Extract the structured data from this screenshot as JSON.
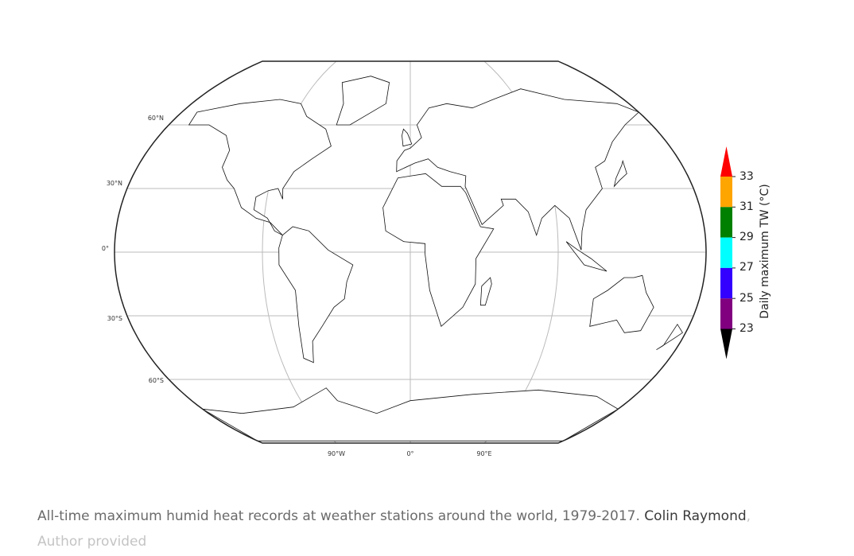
{
  "map": {
    "projection": "Kavrayskiy VII",
    "lat_labels": [
      "60°N",
      "30°N",
      "0°",
      "30°S",
      "60°S"
    ],
    "lon_labels": [
      "90°W",
      "0°",
      "90°E"
    ],
    "colorbar": {
      "title": "Daily maximum TW (°C)",
      "ticks": [
        "33",
        "31",
        "29",
        "27",
        "25",
        "23"
      ],
      "bins": [
        {
          "range": ">33",
          "color": "#ff0000"
        },
        {
          "range": "31-33",
          "color": "#ffa500"
        },
        {
          "range": "29-31",
          "color": "#008000"
        },
        {
          "range": "27-29",
          "color": "#00ffff"
        },
        {
          "range": "25-27",
          "color": "#3300ff"
        },
        {
          "range": "23-25",
          "color": "#800080"
        },
        {
          "range": "<23",
          "color": "#000000"
        }
      ]
    }
  },
  "caption": {
    "text": "All-time maximum humid heat records at weather stations around the world, 1979-2017.",
    "credit": "Colin Raymond",
    "separator": ",",
    "provided": "Author provided"
  }
}
